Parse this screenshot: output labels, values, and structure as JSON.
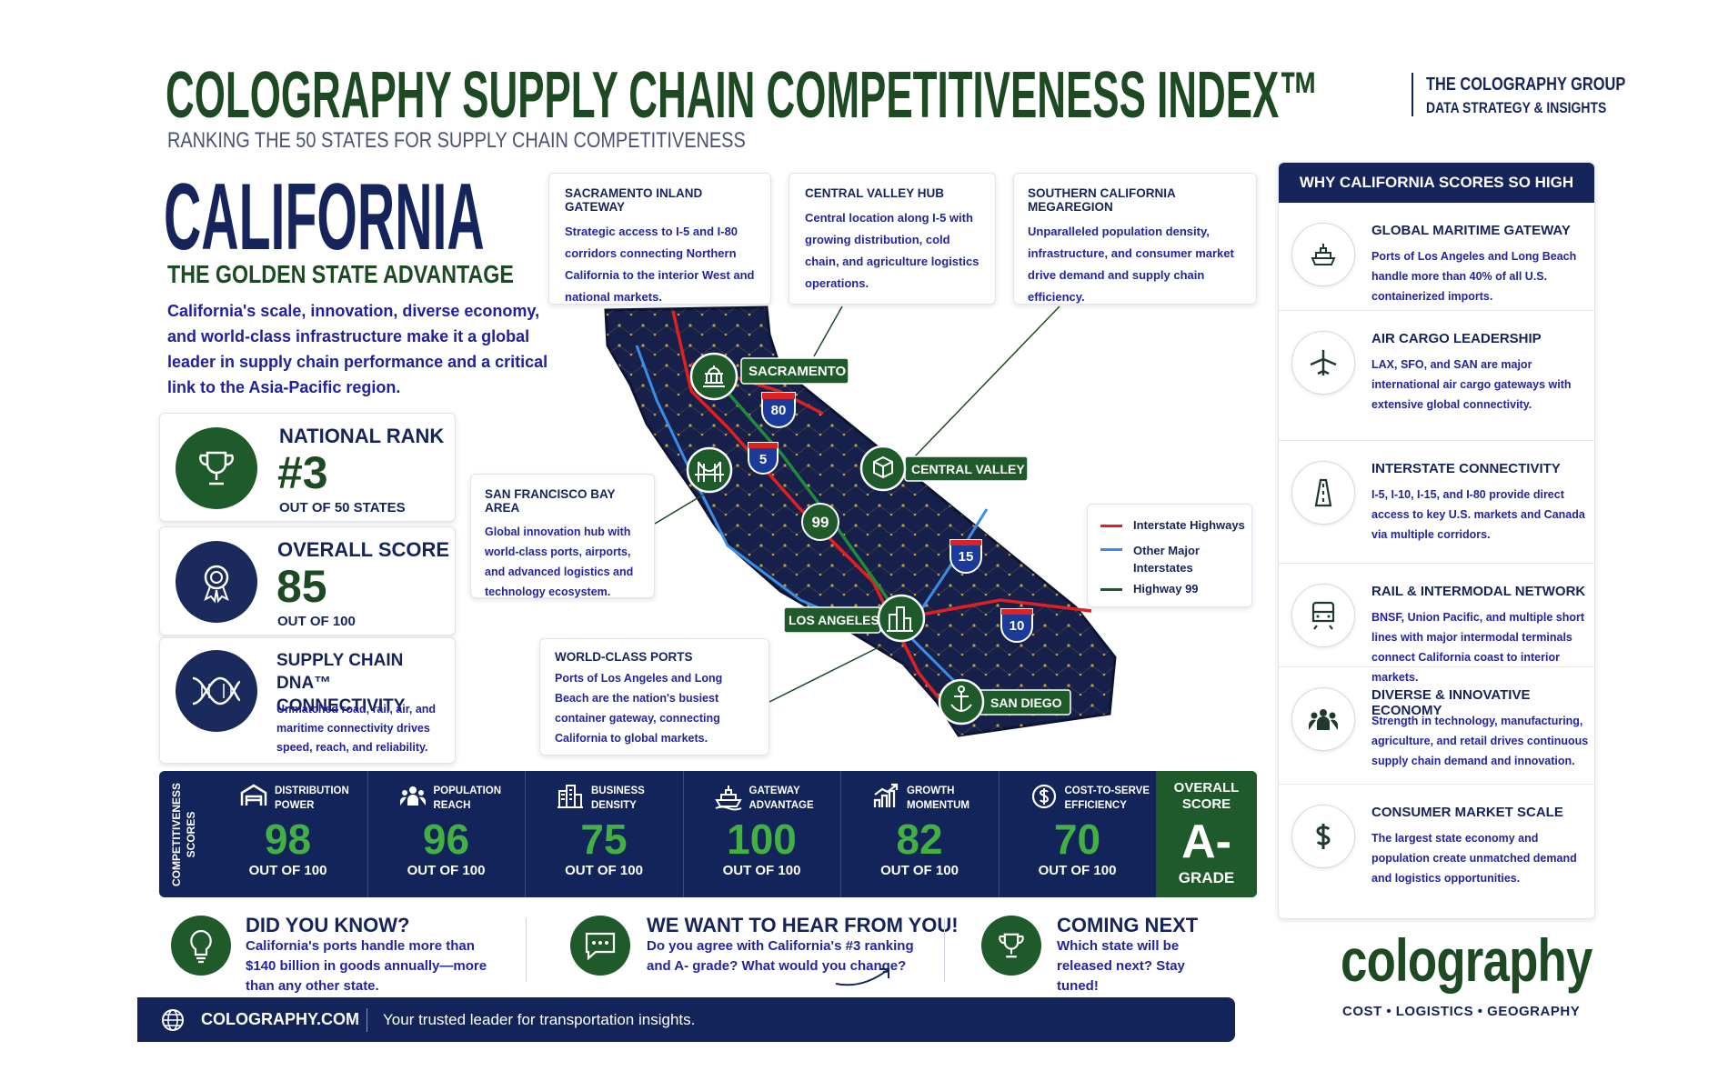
{
  "header": {
    "title": "COLOGRAPHY SUPPLY CHAIN COMPETITIVENESS INDEX™",
    "company": "THE COLOGRAPHY GROUP",
    "tagline": "DATA STRATEGY & INSIGHTS",
    "subtitle": "RANKING THE 50 STATES FOR SUPPLY CHAIN COMPETITIVENESS"
  },
  "state": {
    "name": "CALIFORNIA",
    "slogan": "THE GOLDEN STATE ADVANTAGE",
    "description": "California's scale, innovation, diverse economy, and world-class infrastructure make it a global leader in supply chain performance and a critical link to the Asia-Pacific region."
  },
  "stats": [
    {
      "label": "NATIONAL RANK",
      "value": "#3",
      "sub": "OUT OF 50 STATES"
    },
    {
      "label": "OVERALL SCORE",
      "value": 85,
      "sub": "OUT OF 100"
    },
    {
      "label": "SUPPLY CHAIN DNA™ CONNECTIVITY",
      "text": "Unmatched road, rail, air, and maritime connectivity drives speed, reach, and reliability."
    }
  ],
  "callouts": [
    {
      "title": "SACRAMENTO INLAND GATEWAY",
      "text": "Strategic access to I-5 and I-80 corridors connecting Northern California to the interior West and national markets."
    },
    {
      "title": "CENTRAL VALLEY HUB",
      "text": "Central location along I-5 with growing distribution, cold chain, and agriculture logistics operations."
    },
    {
      "title": "SOUTHERN CALIFORNIA MEGAREGION",
      "text": "Unparalleled population density, infrastructure, and consumer market drive demand and supply chain efficiency."
    },
    {
      "title": "SAN FRANCISCO BAY AREA",
      "text": "Global innovation hub with world-class ports, airports, and advanced logistics and technology ecosystem."
    },
    {
      "title": "WORLD-CLASS PORTS",
      "text": "Ports of Los Angeles and Long Beach are the nation's busiest container gateway, connecting California to global markets."
    }
  ],
  "map": {
    "cities": [
      "SACRAMENTO",
      "CENTRAL VALLEY",
      "LOS ANGELES",
      "SAN DIEGO"
    ],
    "shields": [
      "80",
      "5",
      "99",
      "15",
      "10"
    ],
    "legend": [
      "Interstate Highways",
      "Other Major Interstates",
      "Highway 99"
    ]
  },
  "why": {
    "title": "WHY CALIFORNIA SCORES SO HIGH",
    "items": [
      {
        "title": "GLOBAL MARITIME GATEWAY",
        "text": "Ports of Los Angeles and Long Beach handle more than 40% of all U.S. containerized imports."
      },
      {
        "title": "AIR CARGO LEADERSHIP",
        "text": "LAX, SFO, and SAN are major international air cargo gateways with extensive global connectivity."
      },
      {
        "title": "INTERSTATE CONNECTIVITY",
        "text": "I-5, I-10, I-15, and I-80 provide direct access to key U.S. markets and Canada via multiple corridors."
      },
      {
        "title": "RAIL & INTERMODAL NETWORK",
        "text": "BNSF, Union Pacific, and multiple short lines with major intermodal terminals connect California coast to interior markets."
      },
      {
        "title": "DIVERSE & INNOVATIVE ECONOMY",
        "text": "Strength in technology, manufacturing, agriculture, and retail drives continuous supply chain demand and innovation."
      },
      {
        "title": "CONSUMER MARKET SCALE",
        "text": "The largest state economy and population create unmatched demand and logistics opportunities."
      }
    ]
  },
  "scores": {
    "label": "COMPETITIVENESS SCORES",
    "items": [
      {
        "name": "DISTRIBUTION POWER",
        "value": 98,
        "sub": "OUT OF 100"
      },
      {
        "name": "POPULATION REACH",
        "value": 96,
        "sub": "OUT OF 100"
      },
      {
        "name": "BUSINESS DENSITY",
        "value": 75,
        "sub": "OUT OF 100"
      },
      {
        "name": "GATEWAY ADVANTAGE",
        "value": 100,
        "sub": "OUT OF 100"
      },
      {
        "name": "GROWTH MOMENTUM",
        "value": 82,
        "sub": "OUT OF 100"
      },
      {
        "name": "COST-TO-SERVE EFFICIENCY",
        "value": 70,
        "sub": "OUT OF 100"
      }
    ],
    "overall": {
      "label": "OVERALL SCORE",
      "grade": "A-",
      "sub": "GRADE"
    }
  },
  "bottom": [
    {
      "title": "DID YOU KNOW?",
      "text": "California's ports handle more than $140 billion in goods annually—more than any other state."
    },
    {
      "title": "WE WANT TO HEAR FROM YOU!",
      "text": "Do you agree with California's #3 ranking and A- grade? What would you change?"
    },
    {
      "title": "COMING NEXT",
      "text": "Which state will be released next? Stay tuned!"
    }
  ],
  "footer": {
    "url": "COLOGRAPHY.COM",
    "text": "Your trusted leader for transportation insights."
  },
  "brand": {
    "name": "colography",
    "tagline": "COST • LOGISTICS • GEOGRAPHY"
  }
}
